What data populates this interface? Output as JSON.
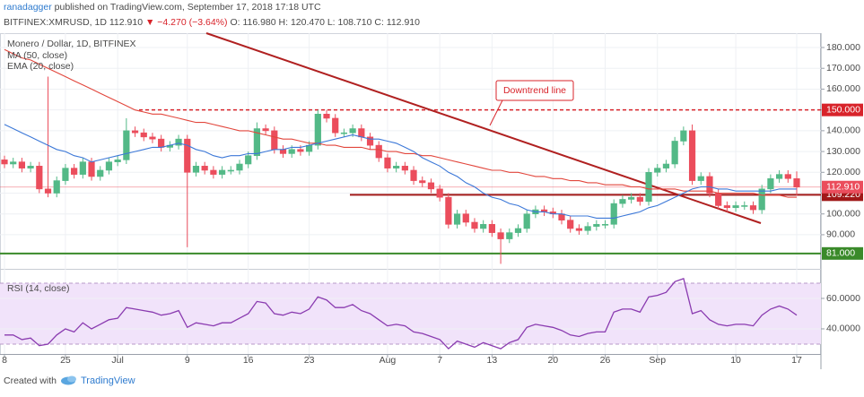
{
  "header": {
    "author": "ranadagger",
    "published": "published on TradingView.com, September 17, 2018 17:18 UTC",
    "symbol": "BITFINEX:XMRUSD, 1D",
    "last": "112.910",
    "change": "▼ −4.270 (−3.64%)",
    "ohlc": "O: 116.980 H: 120.470 L: 108.710 C: 112.910"
  },
  "footer": {
    "created": "Created with",
    "brand": "TradingView"
  },
  "chart_data": {
    "type": "candlestick",
    "title": "Monero / Dollar, 1D, BITFINEX",
    "up_color": "#53b987",
    "down_color": "#eb4d5c",
    "grid": true,
    "categories": [
      "8",
      null,
      null,
      null,
      null,
      null,
      null,
      "25",
      null,
      null,
      null,
      null,
      null,
      "Jul",
      null,
      null,
      null,
      null,
      null,
      null,
      null,
      "9",
      null,
      null,
      null,
      null,
      null,
      null,
      "16",
      null,
      null,
      null,
      null,
      null,
      null,
      "23",
      null,
      null,
      null,
      null,
      null,
      null,
      null,
      null,
      "Aug",
      null,
      null,
      null,
      null,
      null,
      "7",
      null,
      null,
      null,
      null,
      null,
      "13",
      null,
      null,
      null,
      null,
      null,
      null,
      "20",
      null,
      null,
      null,
      null,
      null,
      "26",
      null,
      null,
      null,
      null,
      null,
      "Sep",
      null,
      null,
      null,
      null,
      null,
      null,
      null,
      null,
      "10",
      null,
      null,
      null,
      null,
      null,
      null,
      "17"
    ],
    "open": [
      126,
      124,
      125,
      122,
      123,
      112,
      110,
      116,
      122,
      119,
      125,
      118,
      121,
      125,
      126,
      140,
      139,
      137,
      136,
      132,
      133,
      136,
      120,
      123,
      121,
      119,
      121,
      121,
      124,
      128,
      141,
      140,
      131,
      129,
      131,
      130,
      133,
      148,
      146,
      139,
      139,
      141,
      137,
      133,
      127,
      122,
      123,
      121,
      116,
      115,
      112,
      108,
      95,
      100,
      96,
      93,
      95,
      91,
      88,
      91,
      93,
      100,
      102,
      101,
      100,
      97,
      93,
      92,
      94,
      95,
      95,
      105,
      107,
      108,
      106,
      120,
      122,
      124,
      135,
      140,
      116,
      118,
      110,
      104,
      103,
      104,
      104,
      102,
      112,
      117,
      119,
      116.98
    ],
    "high": [
      128,
      127,
      127,
      125,
      125,
      166,
      118,
      124,
      124,
      127,
      127,
      123,
      127,
      128,
      146,
      142,
      141,
      139,
      138,
      135,
      138,
      138,
      125,
      125,
      123,
      123,
      123,
      126,
      130,
      144,
      143,
      142,
      133,
      133,
      133,
      135,
      150,
      150,
      148,
      141,
      143,
      143,
      139,
      135,
      129,
      125,
      125,
      123,
      118,
      117,
      114,
      110,
      102,
      102,
      98,
      97,
      97,
      93,
      93,
      95,
      102,
      104,
      104,
      103,
      102,
      99,
      95,
      96,
      97,
      97,
      107,
      109,
      110,
      110,
      122,
      124,
      126,
      137,
      142,
      143,
      120,
      120,
      112,
      106,
      106,
      106,
      106,
      114,
      119,
      121,
      121,
      120.47
    ],
    "low": [
      122,
      122,
      120,
      120,
      110,
      108,
      108,
      114,
      117,
      117,
      116,
      116,
      119,
      123,
      124,
      137,
      135,
      134,
      130,
      130,
      131,
      84,
      118,
      119,
      117,
      117,
      119,
      119,
      122,
      126,
      138,
      129,
      127,
      127,
      128,
      128,
      131,
      144,
      137,
      137,
      137,
      135,
      131,
      125,
      120,
      120,
      119,
      114,
      113,
      110,
      106,
      93,
      93,
      94,
      91,
      91,
      89,
      76,
      86,
      89,
      91,
      98,
      99,
      98,
      95,
      91,
      90,
      90,
      92,
      93,
      93,
      103,
      105,
      104,
      104,
      118,
      120,
      122,
      133,
      114,
      114,
      108,
      102,
      101,
      101,
      102,
      100,
      100,
      110,
      115,
      115,
      108.71
    ],
    "close": [
      124,
      125,
      122,
      123,
      112,
      110,
      116,
      122,
      119,
      125,
      118,
      121,
      125,
      126,
      140,
      139,
      137,
      136,
      132,
      133,
      136,
      120,
      123,
      121,
      119,
      121,
      121,
      124,
      128,
      141,
      140,
      131,
      129,
      131,
      130,
      133,
      148,
      146,
      139,
      139,
      141,
      137,
      133,
      127,
      122,
      123,
      121,
      116,
      115,
      112,
      108,
      95,
      100,
      96,
      93,
      95,
      91,
      88,
      91,
      93,
      100,
      102,
      101,
      100,
      97,
      93,
      92,
      94,
      95,
      95,
      105,
      107,
      108,
      106,
      120,
      122,
      124,
      135,
      140,
      116,
      118,
      110,
      104,
      103,
      104,
      104,
      102,
      112,
      117,
      119,
      117,
      112.91
    ],
    "last_price_label": "112.910",
    "overlays": [
      {
        "name": "MA (50, close)",
        "color": "#e2463c",
        "values": [
          179,
          177,
          175,
          174,
          172,
          170,
          168,
          166,
          164,
          162,
          160,
          158,
          156,
          154,
          152,
          150,
          149,
          148,
          148,
          147,
          146,
          145,
          144,
          144,
          143,
          142,
          141,
          140,
          140,
          139,
          138,
          137,
          136,
          136,
          135,
          134,
          134,
          133,
          133,
          132,
          132,
          132,
          131,
          131,
          130,
          130,
          129,
          129,
          128,
          128,
          127,
          126,
          125,
          124,
          123,
          122,
          121,
          121,
          120,
          120,
          119,
          118,
          118,
          117,
          117,
          116,
          116,
          115,
          115,
          114,
          114,
          114,
          113,
          113,
          112,
          112,
          112,
          112,
          111,
          111,
          111,
          111,
          110,
          110,
          110,
          110,
          110,
          109,
          109,
          109,
          108,
          108
        ]
      },
      {
        "name": "EMA (20, close)",
        "color": "#3c78d8",
        "values": [
          143,
          141,
          139,
          137,
          135,
          133,
          131,
          130,
          128,
          127,
          125,
          126,
          127,
          128,
          129,
          130,
          131,
          132,
          132,
          133,
          134,
          133,
          131,
          130,
          128,
          127,
          128,
          128,
          129,
          129,
          130,
          131,
          131,
          132,
          132,
          133,
          134,
          135,
          136,
          137,
          138,
          137,
          136,
          136,
          135,
          134,
          132,
          130,
          127,
          125,
          123,
          120,
          118,
          115,
          113,
          110,
          108,
          107,
          105,
          104,
          102,
          101,
          101,
          100,
          100,
          99,
          99,
          99,
          98,
          98,
          98,
          99,
          100,
          101,
          103,
          104,
          106,
          108,
          110,
          112,
          113,
          113,
          112,
          112,
          111,
          111,
          111,
          111,
          111,
          112,
          112,
          112
        ]
      }
    ],
    "ylim": [
      73.6,
      186.9
    ],
    "yticks": [
      {
        "value": 90,
        "label": "90.000"
      },
      {
        "value": 100,
        "label": "100.000"
      },
      {
        "value": 110,
        "label": "110.000"
      },
      {
        "value": 120,
        "label": "120.000"
      },
      {
        "value": 130,
        "label": "130.000"
      },
      {
        "value": 140,
        "label": "140.000"
      },
      {
        "value": 150,
        "label": "150.000"
      },
      {
        "value": 160,
        "label": "160.000"
      },
      {
        "value": 170,
        "label": "170.000"
      },
      {
        "value": 180,
        "label": "180.000"
      }
    ],
    "levels": [
      {
        "value": 150,
        "label": "150.000",
        "color": "#d8232a",
        "dashed": true
      },
      {
        "value": 109.22,
        "label": "109.220",
        "color": "#a01818",
        "dashed": false
      },
      {
        "value": 81,
        "label": "81.000",
        "color": "#3a8a2a",
        "dashed": false
      }
    ],
    "annotation": "Downtrend line",
    "rsi": {
      "name": "RSI (14, close)",
      "color": "#8a3bb0",
      "band_color": "#f1e3fa",
      "values": [
        36,
        36,
        33,
        34,
        29,
        30,
        36,
        40,
        38,
        44,
        40,
        43,
        46,
        47,
        54,
        53,
        52,
        51,
        49,
        50,
        52,
        41,
        44,
        43,
        42,
        44,
        44,
        47,
        50,
        58,
        57,
        50,
        49,
        51,
        50,
        53,
        61,
        59,
        54,
        54,
        56,
        52,
        50,
        46,
        42,
        43,
        42,
        38,
        37,
        35,
        33,
        27,
        32,
        30,
        28,
        31,
        29,
        27,
        31,
        33,
        41,
        43,
        42,
        41,
        39,
        36,
        35,
        37,
        38,
        38,
        51,
        53,
        53,
        51,
        61,
        62,
        64,
        71,
        73,
        50,
        52,
        46,
        43,
        42,
        43,
        43,
        42,
        49,
        53,
        55,
        53,
        49
      ],
      "ylim": [
        23.5,
        79.4
      ],
      "bands": [
        30,
        70
      ],
      "yticks": [
        {
          "value": 40,
          "label": "40.0000"
        },
        {
          "value": 60,
          "label": "60.0000"
        }
      ]
    }
  }
}
